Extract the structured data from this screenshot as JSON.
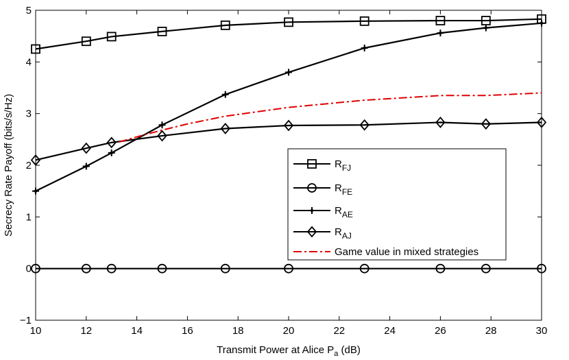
{
  "chart_data": {
    "type": "line",
    "title": "",
    "xlabel": "Transmit Power at Alice P",
    "xlabel_sub": "a",
    "xlabel_unit": " (dB)",
    "ylabel": "Secrecy Rate Payoff (bits/s/Hz)",
    "xlim": [
      10,
      30
    ],
    "ylim": [
      -1,
      5
    ],
    "xticks": [
      "10",
      "12",
      "14",
      "16",
      "18",
      "20",
      "22",
      "24",
      "26",
      "28",
      "30"
    ],
    "yticks": [
      "−1",
      "0",
      "1",
      "2",
      "3",
      "4",
      "5"
    ],
    "grid": false,
    "legend_position": "lower-right",
    "series": [
      {
        "name": "R_FJ",
        "label_main": "R",
        "label_sub": "FJ",
        "marker": "square",
        "color": "#000000",
        "x": [
          10,
          12,
          13,
          15,
          17.5,
          20,
          23,
          26,
          27.8,
          30
        ],
        "y": [
          4.25,
          4.4,
          4.49,
          4.59,
          4.71,
          4.77,
          4.79,
          4.8,
          4.8,
          4.83
        ]
      },
      {
        "name": "R_FE",
        "label_main": "R",
        "label_sub": "FE",
        "marker": "circle",
        "color": "#000000",
        "x": [
          10,
          12,
          13,
          15,
          17.5,
          20,
          23,
          26,
          27.8,
          30
        ],
        "y": [
          0,
          0,
          0,
          0,
          0,
          0,
          0,
          0,
          0,
          0
        ]
      },
      {
        "name": "R_AE",
        "label_main": "R",
        "label_sub": "AE",
        "marker": "plus",
        "color": "#000000",
        "x": [
          10,
          12,
          13,
          15,
          17.5,
          20,
          23,
          26,
          27.8,
          30
        ],
        "y": [
          1.5,
          1.98,
          2.24,
          2.78,
          3.37,
          3.8,
          4.27,
          4.56,
          4.66,
          4.75
        ]
      },
      {
        "name": "R_AJ",
        "label_main": "R",
        "label_sub": "AJ",
        "marker": "diamond",
        "color": "#000000",
        "x": [
          10,
          12,
          13,
          15,
          17.5,
          20,
          23,
          26,
          27.8,
          30
        ],
        "y": [
          2.1,
          2.33,
          2.44,
          2.57,
          2.71,
          2.77,
          2.78,
          2.83,
          2.8,
          2.83
        ]
      },
      {
        "name": "Game value in mixed strategies",
        "label_main": "Game value in mixed strategies",
        "label_sub": "",
        "marker": "none",
        "dash": "dashdot",
        "color": "#e00000",
        "x": [
          13.3,
          14,
          15,
          16,
          17.5,
          20,
          23,
          26,
          27.8,
          30
        ],
        "y": [
          2.45,
          2.55,
          2.68,
          2.8,
          2.95,
          3.12,
          3.26,
          3.35,
          3.35,
          3.4
        ]
      }
    ]
  }
}
